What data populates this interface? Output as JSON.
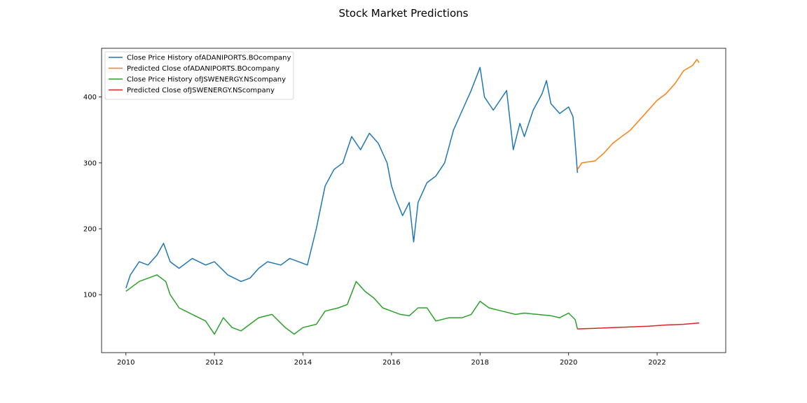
{
  "chart_data": {
    "type": "line",
    "title": "Stock Market Predictions",
    "xlabel": "",
    "ylabel": "",
    "xlim": [
      2009.45,
      2023.55
    ],
    "ylim": [
      12,
      474
    ],
    "x_ticks": [
      2010,
      2012,
      2014,
      2016,
      2018,
      2020,
      2022
    ],
    "x_tick_labels": [
      "2010",
      "2012",
      "2014",
      "2016",
      "2018",
      "2020",
      "2022"
    ],
    "y_ticks": [
      100,
      200,
      300,
      400
    ],
    "y_tick_labels": [
      "100",
      "200",
      "300",
      "400"
    ],
    "grid": false,
    "legend_position": "top-left",
    "series": [
      {
        "name": "Close Price History ofADANIPORTS.BOcompany",
        "color": "#1f77b4",
        "x": [
          2010.0,
          2010.1,
          2010.3,
          2010.5,
          2010.7,
          2010.85,
          2011.0,
          2011.2,
          2011.5,
          2011.8,
          2012.0,
          2012.3,
          2012.6,
          2012.8,
          2013.0,
          2013.2,
          2013.5,
          2013.7,
          2013.9,
          2014.1,
          2014.3,
          2014.5,
          2014.7,
          2014.9,
          2015.1,
          2015.3,
          2015.5,
          2015.7,
          2015.9,
          2016.0,
          2016.1,
          2016.25,
          2016.4,
          2016.5,
          2016.6,
          2016.8,
          2017.0,
          2017.2,
          2017.4,
          2017.6,
          2017.8,
          2018.0,
          2018.1,
          2018.3,
          2018.5,
          2018.6,
          2018.75,
          2018.9,
          2019.0,
          2019.2,
          2019.4,
          2019.5,
          2019.6,
          2019.8,
          2020.0,
          2020.1,
          2020.15,
          2020.2
        ],
        "values": [
          110,
          130,
          150,
          145,
          160,
          178,
          150,
          140,
          155,
          145,
          150,
          130,
          120,
          125,
          140,
          150,
          145,
          155,
          150,
          145,
          200,
          265,
          290,
          300,
          340,
          320,
          345,
          330,
          300,
          265,
          245,
          220,
          240,
          180,
          240,
          270,
          280,
          300,
          350,
          380,
          410,
          445,
          400,
          380,
          400,
          410,
          320,
          360,
          340,
          380,
          405,
          425,
          390,
          375,
          385,
          370,
          330,
          285
        ]
      },
      {
        "name": "Predicted Close ofADANIPORTS.BOcompany",
        "color": "#ff7f0e",
        "x": [
          2020.2,
          2020.3,
          2020.6,
          2020.8,
          2021.0,
          2021.2,
          2021.4,
          2021.6,
          2021.8,
          2022.0,
          2022.2,
          2022.4,
          2022.6,
          2022.8,
          2022.9,
          2022.95
        ],
        "values": [
          290,
          300,
          303,
          315,
          330,
          340,
          350,
          365,
          380,
          395,
          405,
          420,
          440,
          448,
          457,
          452
        ]
      },
      {
        "name": "Close Price History ofJSWENERGY.NScompany",
        "color": "#2ca02c",
        "x": [
          2010.0,
          2010.1,
          2010.3,
          2010.5,
          2010.7,
          2010.9,
          2011.0,
          2011.2,
          2011.5,
          2011.8,
          2012.0,
          2012.2,
          2012.4,
          2012.6,
          2012.8,
          2013.0,
          2013.3,
          2013.6,
          2013.8,
          2014.0,
          2014.3,
          2014.5,
          2014.8,
          2015.0,
          2015.2,
          2015.4,
          2015.6,
          2015.8,
          2016.0,
          2016.2,
          2016.4,
          2016.6,
          2016.8,
          2017.0,
          2017.3,
          2017.6,
          2017.8,
          2018.0,
          2018.2,
          2018.5,
          2018.8,
          2019.0,
          2019.3,
          2019.6,
          2019.8,
          2020.0,
          2020.15,
          2020.2
        ],
        "values": [
          105,
          110,
          120,
          125,
          130,
          120,
          100,
          80,
          70,
          60,
          40,
          65,
          50,
          45,
          55,
          65,
          70,
          50,
          40,
          50,
          55,
          75,
          80,
          85,
          120,
          105,
          95,
          80,
          75,
          70,
          68,
          80,
          80,
          60,
          65,
          65,
          70,
          90,
          80,
          75,
          70,
          72,
          70,
          68,
          65,
          72,
          62,
          48
        ]
      },
      {
        "name": "Predicted Close ofJSWENERGY.NScompany",
        "color": "#d62728",
        "x": [
          2020.2,
          2020.6,
          2021.0,
          2021.4,
          2021.8,
          2022.2,
          2022.6,
          2022.95
        ],
        "values": [
          48,
          49,
          50,
          51,
          52,
          54,
          55,
          57
        ]
      }
    ]
  }
}
